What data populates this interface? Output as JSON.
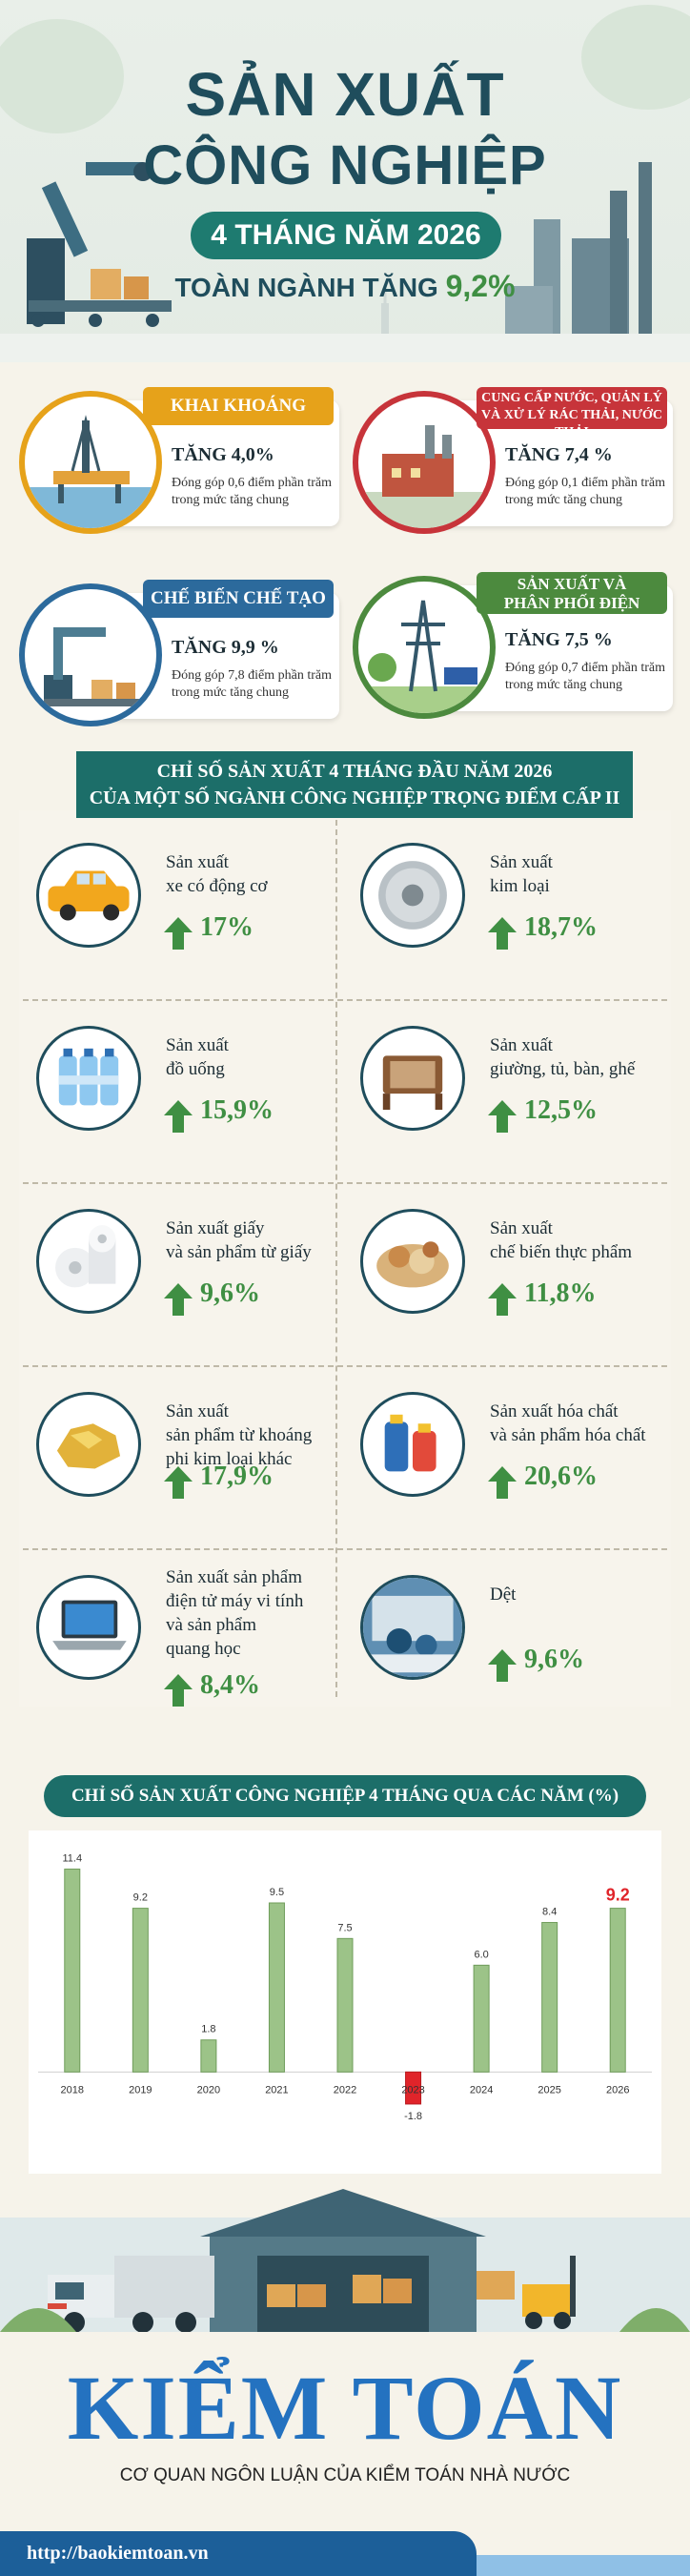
{
  "header": {
    "title_line1": "SẢN XUẤT",
    "title_line2": "CÔNG NGHIỆP",
    "period": "4 THÁNG NĂM 2026",
    "overall_label": "TOÀN NGÀNH TĂNG",
    "overall_value": "9,2%"
  },
  "sectors": [
    {
      "name": "KHAI KHOÁNG",
      "growth": "TĂNG 4,0%",
      "contribution": "Đóng góp 0,6 điểm phần trăm trong mức tăng chung",
      "color": "#e6a21a"
    },
    {
      "name_line1": "CUNG CẤP NƯỚC, QUẢN LÝ",
      "name_line2": "VÀ XỬ LÝ RÁC THẢI, NƯỚC THẢI",
      "growth": "TĂNG 7,4 %",
      "contribution": "Đóng góp 0,1 điểm phần trăm trong mức tăng chung",
      "color": "#c7343a"
    },
    {
      "name": "CHẾ BIẾN CHẾ TẠO",
      "growth": "TĂNG 9,9 %",
      "contribution": "Đóng góp 7,8 điểm phần trăm trong mức tăng chung",
      "color": "#2c6a9c"
    },
    {
      "name_line1": "SẢN XUẤT VÀ",
      "name_line2": "PHÂN PHỐI ĐIỆN",
      "growth": "TĂNG 7,5 %",
      "contribution": "Đóng góp 0,7 điểm phần trăm trong mức tăng chung",
      "color": "#4c8a3e"
    }
  ],
  "section1_title_line1": "CHỈ SỐ SẢN XUẤT 4 THÁNG ĐẦU NĂM 2026",
  "section1_title_line2": "CỦA MỘT SỐ NGÀNH CÔNG NGHIỆP TRỌNG ĐIỂM CẤP II",
  "industries": [
    {
      "name": "Sản xuất\nxe có động cơ",
      "value": "17%",
      "icon": "car-icon"
    },
    {
      "name": "Sản xuất\nkim loại",
      "value": "18,7%",
      "icon": "steel-coil-icon"
    },
    {
      "name": "Sản xuất\nđồ uống",
      "value": "15,9%",
      "icon": "water-bottles-icon"
    },
    {
      "name": "Sản xuất\ngiường, tủ, bàn, ghế",
      "value": "12,5%",
      "icon": "chair-icon"
    },
    {
      "name": "Sản xuất giấy\nvà sản phẩm từ giấy",
      "value": "9,6%",
      "icon": "paper-rolls-icon"
    },
    {
      "name": "Sản xuất\nchế biến thực phẩm",
      "value": "11,8%",
      "icon": "food-icon"
    },
    {
      "name": "Sản xuất\nsản phẩm từ khoáng\nphi kim loại khác",
      "value": "17,9%",
      "icon": "gold-nugget-icon"
    },
    {
      "name": "Sản xuất hóa chất\nvà sản phẩm hóa chất",
      "value": "20,6%",
      "icon": "chemical-bottles-icon"
    },
    {
      "name": "Sản xuất sản phẩm\nđiện tử máy vi tính\nvà sản phẩm\nquang học",
      "value": "8,4%",
      "icon": "laptop-icon"
    },
    {
      "name": "Dệt",
      "value": "9,6%",
      "icon": "textile-icon"
    }
  ],
  "chart_title": "CHỈ SỐ SẢN XUẤT CÔNG NGHIỆP 4 THÁNG QUA CÁC NĂM (%)",
  "chart_data": {
    "type": "bar",
    "title": "CHỈ SỐ SẢN XUẤT CÔNG NGHIỆP 4 THÁNG QUA CÁC NĂM (%)",
    "categories": [
      "2018",
      "2019",
      "2020",
      "2021",
      "2022",
      "2023",
      "2024",
      "2025",
      "2026"
    ],
    "values": [
      11.4,
      9.2,
      1.8,
      9.5,
      7.5,
      -1.8,
      6.0,
      8.4,
      9.2
    ],
    "value_labels": [
      "11.4",
      "9.2",
      "1.8",
      "9.5",
      "7.5",
      "-1.8",
      "6.0",
      "8.4",
      "9.2"
    ],
    "ylim": [
      -2.5,
      12.5
    ],
    "bar_color": "#9cc388",
    "negative_color": "#e0242a",
    "highlight_label_color": "#e0242a",
    "grid": false
  },
  "footer": {
    "logo": "KIỂM TOÁN",
    "tagline": "CƠ QUAN NGÔN LUẬN CỦA KIỂM TOÁN NHÀ NƯỚC",
    "website": "http://baokiemtoan.vn"
  }
}
